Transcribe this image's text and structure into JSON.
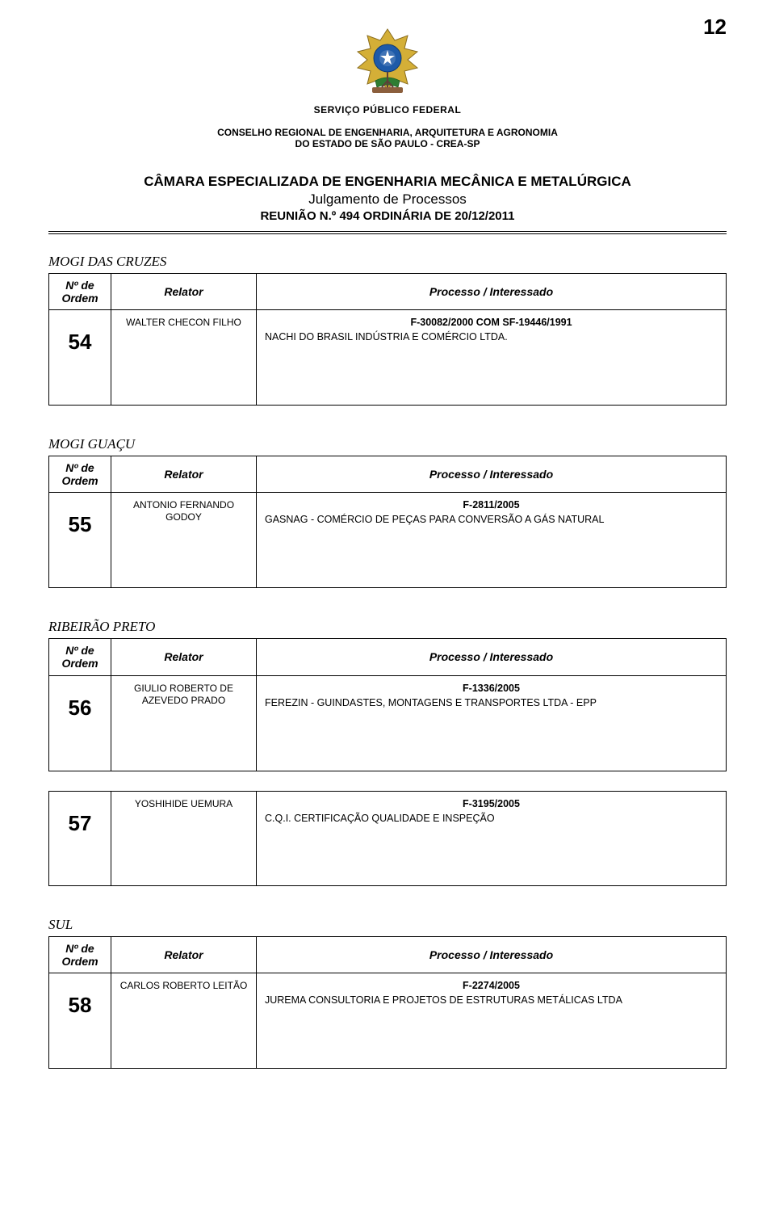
{
  "page_number": "12",
  "header": {
    "service_line": "SERVIÇO PÚBLICO FEDERAL",
    "council_line1": "CONSELHO REGIONAL DE ENGENHARIA, ARQUITETURA E AGRONOMIA",
    "council_line2": "DO ESTADO DE SÃO PAULO - CREA-SP"
  },
  "title": {
    "main": "CÂMARA ESPECIALIZADA DE ENGENHARIA MECÂNICA E METALÚRGICA",
    "sub1": "Julgamento de Processos",
    "sub2": "REUNIÃO N.º 494 ORDINÁRIA DE 20/12/2011"
  },
  "column_headers": {
    "ordem_l1": "Nº de",
    "ordem_l2": "Ordem",
    "relator": "Relator",
    "processo": "Processo / Interessado"
  },
  "sections": [
    {
      "name": "MOGI DAS CRUZES",
      "has_header": true,
      "rows": [
        {
          "ordem": "54",
          "relator": "WALTER CHECON FILHO",
          "proc_code": "F-30082/2000  COM SF-19446/1991",
          "interessado": "NACHI DO BRASIL INDÚSTRIA E COMÉRCIO LTDA."
        }
      ]
    },
    {
      "name": "MOGI GUAÇU",
      "has_header": true,
      "rows": [
        {
          "ordem": "55",
          "relator": "ANTONIO FERNANDO GODOY",
          "proc_code": "F-2811/2005",
          "interessado": "GASNAG -  COMÉRCIO DE PEÇAS PARA CONVERSÃO A GÁS NATURAL"
        }
      ]
    },
    {
      "name": "RIBEIRÃO PRETO",
      "has_header": true,
      "rows": [
        {
          "ordem": "56",
          "relator": "GIULIO ROBERTO DE AZEVEDO PRADO",
          "proc_code": "F-1336/2005",
          "interessado": "FEREZIN - GUINDASTES, MONTAGENS E TRANSPORTES LTDA - EPP"
        },
        {
          "ordem": "57",
          "relator": "YOSHIHIDE UEMURA",
          "proc_code": "F-3195/2005",
          "interessado": "C.Q.I. CERTIFICAÇÃO QUALIDADE  E INSPEÇÃO"
        }
      ]
    },
    {
      "name": "SUL",
      "has_header": true,
      "rows": [
        {
          "ordem": "58",
          "relator": "CARLOS ROBERTO LEITÃO",
          "proc_code": "F-2274/2005",
          "interessado": "JUREMA CONSULTORIA E PROJETOS DE ESTRUTURAS METÁLICAS LTDA"
        }
      ]
    }
  ],
  "style": {
    "page_bg": "#ffffff",
    "text_color": "#000000",
    "border_color": "#000000",
    "font_family": "Arial",
    "page_number_fontsize": 26,
    "title_fontsize": 17,
    "body_fontsize": 13,
    "ordem_number_fontsize": 26,
    "emblem_colors": {
      "globe_blue": "#1e5aa8",
      "gold": "#d4af37",
      "green": "#2e7d32",
      "ribbon": "#8b5e3c"
    }
  }
}
